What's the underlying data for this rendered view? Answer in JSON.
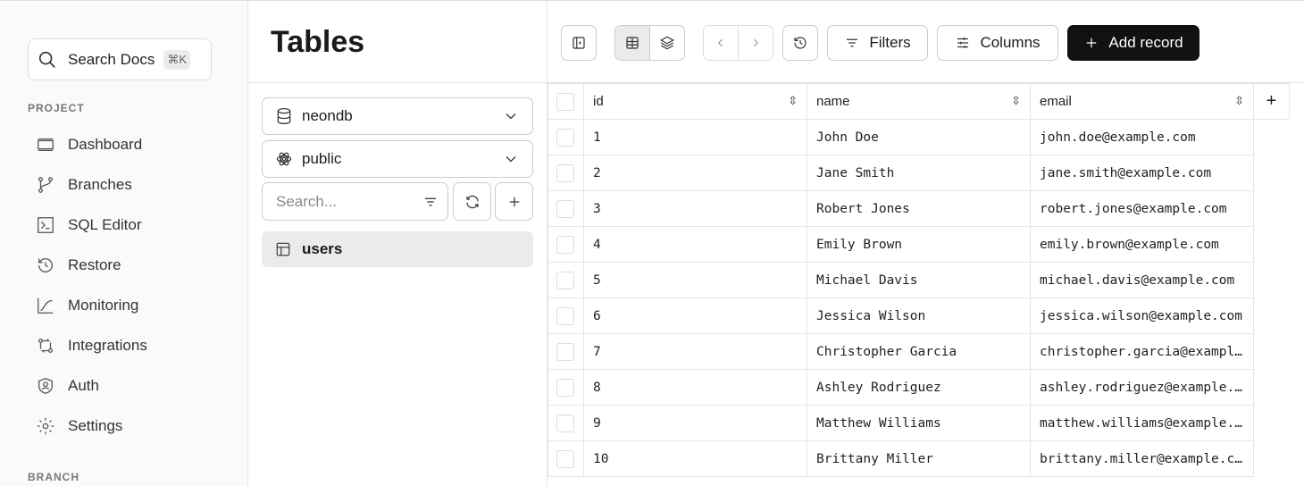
{
  "sidebar": {
    "search_label": "Search Docs",
    "search_shortcut": "⌘K",
    "project_section": "PROJECT",
    "branch_section": "BRANCH",
    "items": [
      {
        "label": "Dashboard",
        "icon": "dashboard-icon"
      },
      {
        "label": "Branches",
        "icon": "branches-icon"
      },
      {
        "label": "SQL Editor",
        "icon": "sql-editor-icon"
      },
      {
        "label": "Restore",
        "icon": "restore-icon"
      },
      {
        "label": "Monitoring",
        "icon": "monitoring-icon"
      },
      {
        "label": "Integrations",
        "icon": "integrations-icon"
      },
      {
        "label": "Auth",
        "icon": "auth-icon"
      },
      {
        "label": "Settings",
        "icon": "gear-icon"
      }
    ]
  },
  "tables_panel": {
    "title": "Tables",
    "database": "neondb",
    "schema": "public",
    "search_placeholder": "Search...",
    "tables": [
      "users"
    ]
  },
  "toolbar": {
    "filters": "Filters",
    "columns": "Columns",
    "add_record": "Add record"
  },
  "grid": {
    "columns": [
      "id",
      "name",
      "email"
    ],
    "rows": [
      [
        "1",
        "John Doe",
        "john.doe@example.com"
      ],
      [
        "2",
        "Jane Smith",
        "jane.smith@example.com"
      ],
      [
        "3",
        "Robert Jones",
        "robert.jones@example.com"
      ],
      [
        "4",
        "Emily Brown",
        "emily.brown@example.com"
      ],
      [
        "5",
        "Michael Davis",
        "michael.davis@example.com"
      ],
      [
        "6",
        "Jessica Wilson",
        "jessica.wilson@example.com"
      ],
      [
        "7",
        "Christopher Garcia",
        "christopher.garcia@example.com"
      ],
      [
        "8",
        "Ashley Rodriguez",
        "ashley.rodriguez@example.com"
      ],
      [
        "9",
        "Matthew Williams",
        "matthew.williams@example.com"
      ],
      [
        "10",
        "Brittany Miller",
        "brittany.miller@example.com"
      ]
    ]
  }
}
